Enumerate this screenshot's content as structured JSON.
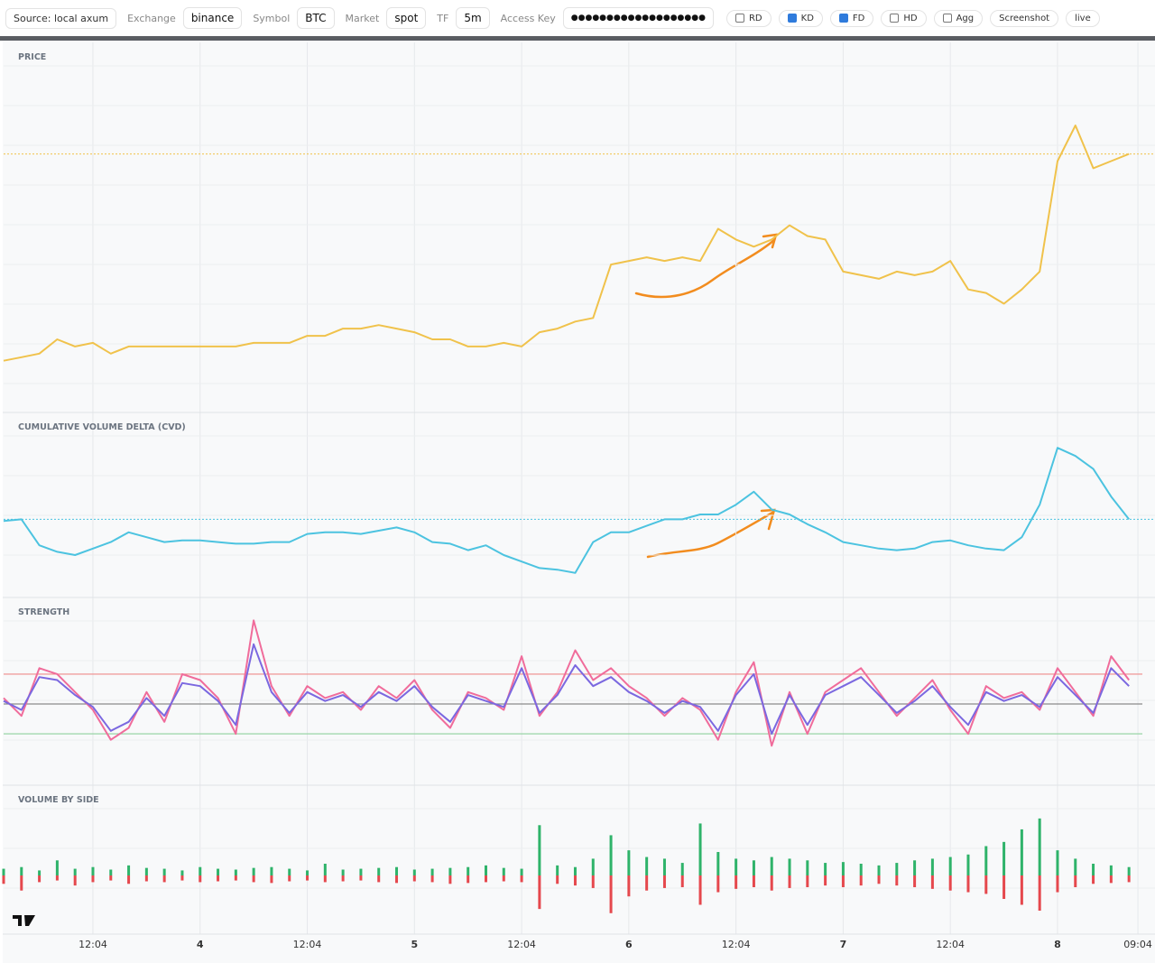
{
  "toolbar": {
    "source": "Source: local axum",
    "fields": [
      {
        "label": "Exchange",
        "value": "binance"
      },
      {
        "label": "Symbol",
        "value": "BTC"
      },
      {
        "label": "Market",
        "value": "spot"
      },
      {
        "label": "TF",
        "value": "5m"
      }
    ],
    "access_key": {
      "label": "Access Key",
      "value": "●●●●●●●●●●●●●●●●●●●"
    },
    "toggles": [
      {
        "label": "RD",
        "checked": false
      },
      {
        "label": "KD",
        "checked": true
      },
      {
        "label": "FD",
        "checked": true
      },
      {
        "label": "HD",
        "checked": false
      },
      {
        "label": "Agg",
        "checked": false
      }
    ],
    "buttons": [
      "Screenshot",
      "live"
    ]
  },
  "time_axis": {
    "xlim": [
      0,
      127.5
    ],
    "xticks": [
      {
        "value": 10,
        "label": "12:04"
      },
      {
        "value": 22,
        "label": "4"
      },
      {
        "value": 34,
        "label": "12:04"
      },
      {
        "value": 46,
        "label": "5"
      },
      {
        "value": 58,
        "label": "12:04"
      },
      {
        "value": 70,
        "label": "6"
      },
      {
        "value": 82,
        "label": "12:04"
      },
      {
        "value": 94,
        "label": "7"
      },
      {
        "value": 106,
        "label": "12:04"
      },
      {
        "value": 118,
        "label": "8"
      },
      {
        "value": 127,
        "label": "09:04"
      }
    ],
    "x": [
      0,
      2,
      4,
      6,
      8,
      10,
      12,
      14,
      16,
      18,
      20,
      22,
      24,
      26,
      28,
      30,
      32,
      34,
      36,
      38,
      40,
      42,
      44,
      46,
      48,
      50,
      52,
      54,
      56,
      58,
      60,
      62,
      64,
      66,
      68,
      70,
      72,
      74,
      76,
      78,
      80,
      82,
      84,
      86,
      88,
      90,
      92,
      94,
      96,
      98,
      100,
      102,
      104,
      106,
      108,
      110,
      112,
      114,
      116,
      118,
      120,
      122,
      124,
      126
    ]
  },
  "chart_data": [
    {
      "type": "line",
      "title": "PRICE",
      "ylim": [
        0,
        100
      ],
      "last_line": true,
      "series": [
        {
          "color": "#f0c24b",
          "values": [
            14,
            15,
            16,
            20,
            18,
            19,
            16,
            18,
            18,
            18,
            18,
            18,
            18,
            18,
            19,
            19,
            19,
            21,
            21,
            23,
            23,
            24,
            23,
            22,
            20,
            20,
            18,
            18,
            19,
            18,
            22,
            23,
            25,
            26,
            41,
            42,
            43,
            42,
            43,
            42,
            51,
            48,
            46,
            48,
            52,
            49,
            48,
            39,
            38,
            37,
            39,
            38,
            39,
            42,
            34,
            33,
            30,
            34,
            39,
            70,
            80,
            68,
            70,
            72
          ]
        }
      ]
    },
    {
      "type": "line",
      "title": "CUMULATIVE VOLUME DELTA (CVD)",
      "ylim": [
        0,
        100
      ],
      "last_line": true,
      "series": [
        {
          "color": "#4cc3e0",
          "values": [
            46,
            47,
            31,
            27,
            25,
            29,
            33,
            39,
            36,
            33,
            34,
            34,
            33,
            32,
            32,
            33,
            33,
            38,
            39,
            39,
            38,
            40,
            42,
            39,
            33,
            32,
            28,
            31,
            25,
            21,
            17,
            16,
            14,
            33,
            39,
            39,
            43,
            47,
            47,
            50,
            50,
            56,
            64,
            53,
            50,
            44,
            39,
            33,
            31,
            29,
            28,
            29,
            33,
            34,
            31,
            29,
            28,
            36,
            56,
            91,
            86,
            78,
            61,
            47
          ]
        }
      ]
    },
    {
      "type": "line",
      "title": "STRENGTH",
      "ylim": [
        -130,
        130
      ],
      "hlines": [
        {
          "value": 50,
          "color": "#ef8a8a"
        },
        {
          "value": 0,
          "color": "#8a8a8a"
        },
        {
          "value": -50,
          "color": "#8fd19e"
        }
      ],
      "series": [
        {
          "color": "#f06c9b",
          "values": [
            10,
            -20,
            60,
            50,
            20,
            -10,
            -60,
            -40,
            20,
            -30,
            50,
            40,
            10,
            -50,
            140,
            30,
            -20,
            30,
            10,
            20,
            -10,
            30,
            10,
            40,
            -10,
            -40,
            20,
            10,
            -10,
            80,
            -20,
            20,
            90,
            40,
            60,
            30,
            10,
            -20,
            10,
            -10,
            -60,
            20,
            70,
            -70,
            20,
            -50,
            20,
            40,
            60,
            20,
            -20,
            10,
            40,
            -10,
            -50,
            30,
            10,
            20,
            -10,
            60,
            20,
            -20,
            80,
            40
          ]
        },
        {
          "color": "#7b68e0",
          "values": [
            5,
            -10,
            45,
            40,
            15,
            -5,
            -45,
            -30,
            10,
            -20,
            35,
            30,
            5,
            -35,
            100,
            20,
            -15,
            20,
            5,
            15,
            -5,
            20,
            5,
            30,
            -5,
            -30,
            15,
            5,
            -5,
            60,
            -15,
            15,
            65,
            30,
            45,
            20,
            5,
            -15,
            5,
            -5,
            -45,
            15,
            50,
            -50,
            15,
            -35,
            15,
            30,
            45,
            15,
            -15,
            5,
            30,
            -5,
            -35,
            20,
            5,
            15,
            -5,
            45,
            15,
            -15,
            60,
            30
          ]
        }
      ]
    },
    {
      "type": "bar",
      "title": "VOLUME BY SIDE",
      "ylim": [
        -70,
        70
      ],
      "series": [
        {
          "color": "#2fb36a",
          "values": [
            8,
            10,
            6,
            18,
            8,
            10,
            7,
            12,
            9,
            8,
            6,
            10,
            8,
            7,
            9,
            10,
            8,
            6,
            14,
            7,
            8,
            9,
            10,
            7,
            8,
            9,
            10,
            12,
            9,
            8,
            60,
            12,
            10,
            20,
            48,
            30,
            22,
            20,
            15,
            62,
            28,
            20,
            18,
            22,
            20,
            18,
            15,
            16,
            14,
            12,
            15,
            18,
            20,
            22,
            25,
            35,
            40,
            55,
            68,
            30,
            20,
            14,
            12,
            10
          ]
        },
        {
          "color": "#e5484d",
          "values": [
            -10,
            -18,
            -8,
            -6,
            -12,
            -8,
            -6,
            -10,
            -7,
            -8,
            -6,
            -8,
            -7,
            -6,
            -8,
            -9,
            -7,
            -6,
            -8,
            -7,
            -6,
            -8,
            -9,
            -7,
            -8,
            -10,
            -9,
            -8,
            -7,
            -8,
            -40,
            -10,
            -12,
            -15,
            -45,
            -25,
            -18,
            -15,
            -14,
            -35,
            -20,
            -16,
            -14,
            -18,
            -15,
            -14,
            -12,
            -14,
            -12,
            -10,
            -12,
            -14,
            -16,
            -18,
            -20,
            -22,
            -28,
            -35,
            -42,
            -20,
            -14,
            -10,
            -9,
            -8
          ]
        }
      ]
    }
  ]
}
